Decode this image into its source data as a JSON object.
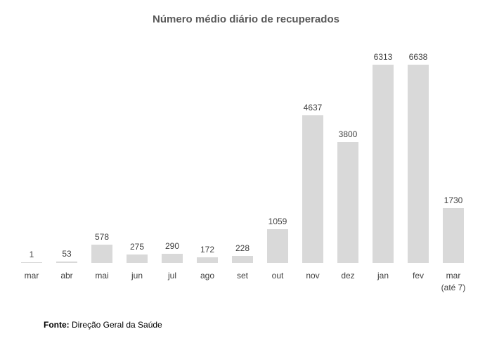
{
  "title": "Número médio diário de recuperados",
  "footer": {
    "label": "Fonte:",
    "text": " Direção Geral da Saúde"
  },
  "colors": {
    "bar": "#d9d9d9",
    "label": "#404040",
    "title": "#595959"
  },
  "chart_data": {
    "type": "bar",
    "title": "Número médio diário de recuperados",
    "categories": [
      "mar",
      "abr",
      "mai",
      "jun",
      "jul",
      "ago",
      "set",
      "out",
      "nov",
      "dez",
      "jan",
      "fev",
      "mar\n(até 7)"
    ],
    "values": [
      1,
      53,
      578,
      275,
      290,
      172,
      228,
      1059,
      4637,
      3800,
      6313,
      6638,
      1730
    ],
    "xlabel": "",
    "ylabel": "",
    "ylim": [
      0,
      6638
    ],
    "grid": false,
    "legend": false,
    "data_labels": true,
    "bar_color": "#d9d9d9",
    "source_note": "Fonte: Direção Geral da Saúde"
  }
}
